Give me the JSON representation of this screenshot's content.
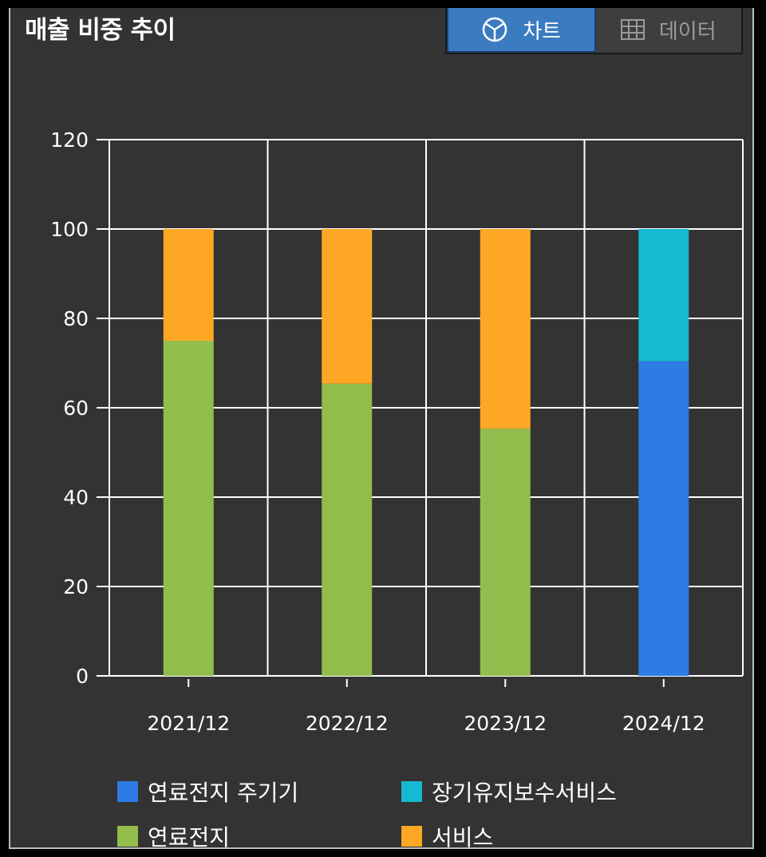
{
  "header": {
    "title": "매출 비중 추이"
  },
  "view_toggle": {
    "chart_label": "차트",
    "data_label": "데이터",
    "chart_icon": "pie-chart-icon",
    "data_icon": "table-grid-icon",
    "active": "chart"
  },
  "colors": {
    "panel_bg": "#333333",
    "grid": "#ffffff",
    "fuel_cell_main_unit": "#2e7be4",
    "long_term_maintenance": "#17b9d0",
    "fuel_cell": "#92bd4c",
    "service": "#fda724"
  },
  "chart_data": {
    "type": "bar",
    "stacked": true,
    "title": "매출 비중 추이",
    "categories": [
      "2021/12",
      "2022/12",
      "2023/12",
      "2024/12"
    ],
    "ylim": [
      0,
      120
    ],
    "yticks": [
      0,
      20,
      40,
      60,
      80,
      100,
      120
    ],
    "grid": true,
    "legend_position": "bottom",
    "series": [
      {
        "name": "연료전지 주기기",
        "color": "#2e7be4",
        "values": [
          0,
          0,
          0,
          70.4
        ]
      },
      {
        "name": "장기유지보수서비스",
        "color": "#17b9d0",
        "values": [
          0,
          0,
          0,
          29.6
        ]
      },
      {
        "name": "연료전지",
        "color": "#92bd4c",
        "values": [
          75,
          65.4,
          55.3,
          0
        ]
      },
      {
        "name": "서비스",
        "color": "#fda724",
        "values": [
          25,
          34.6,
          44.7,
          0
        ]
      }
    ],
    "stack_order": [
      2,
      3,
      0,
      1
    ],
    "legend_order": [
      0,
      1,
      2,
      3
    ]
  }
}
